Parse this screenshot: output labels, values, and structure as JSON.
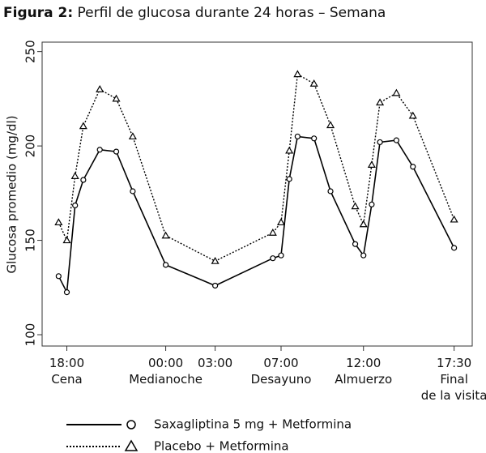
{
  "chart_data": {
    "type": "line",
    "figure_label": "Figura 2:",
    "title": "Perfil de glucosa durante 24 horas – Semana",
    "y_label": "Glucosa promedio (mg/dl)",
    "x": [
      -0.5,
      0,
      0.5,
      1,
      2,
      3,
      4,
      6,
      9,
      12.5,
      13,
      13.5,
      14,
      15,
      16,
      17.5,
      18,
      18.5,
      19,
      20,
      21,
      23.5
    ],
    "series": [
      {
        "name": "Saxagliptina 5 mg + Metformina",
        "color": "#000000",
        "dash": "solid",
        "marker": "circle",
        "values": [
          131,
          122.5,
          168.5,
          182,
          198,
          197,
          176,
          137,
          126,
          140.5,
          142,
          182.5,
          205,
          204,
          176,
          148,
          142,
          169,
          202,
          203,
          189,
          146
        ]
      },
      {
        "name": "Placebo + Metformina",
        "color": "#000000",
        "dash": "dotted",
        "marker": "triangle",
        "values": [
          159.5,
          150,
          184,
          210.5,
          230,
          225,
          205,
          152.5,
          139,
          154,
          159.5,
          197.5,
          238,
          233,
          211,
          168,
          158.5,
          190,
          223,
          228,
          216,
          161
        ]
      }
    ],
    "xlim": [
      -1.5,
      24.6
    ],
    "xticks": [
      {
        "value": 0,
        "label": "18:00",
        "sublabel": [
          "Cena"
        ]
      },
      {
        "value": 6,
        "label": "00:00",
        "sublabel": [
          "Medianoche"
        ]
      },
      {
        "value": 9,
        "label": "03:00",
        "sublabel": []
      },
      {
        "value": 13,
        "label": "07:00",
        "sublabel": [
          "Desayuno"
        ]
      },
      {
        "value": 18,
        "label": "12:00",
        "sublabel": [
          "Almuerzo"
        ]
      },
      {
        "value": 23.5,
        "label": "17:30",
        "sublabel": [
          "Final",
          "de la visita"
        ]
      }
    ],
    "ylim": [
      94,
      255
    ],
    "yticks": [
      100,
      150,
      200,
      250
    ],
    "grid": false,
    "legend": "bottom"
  }
}
